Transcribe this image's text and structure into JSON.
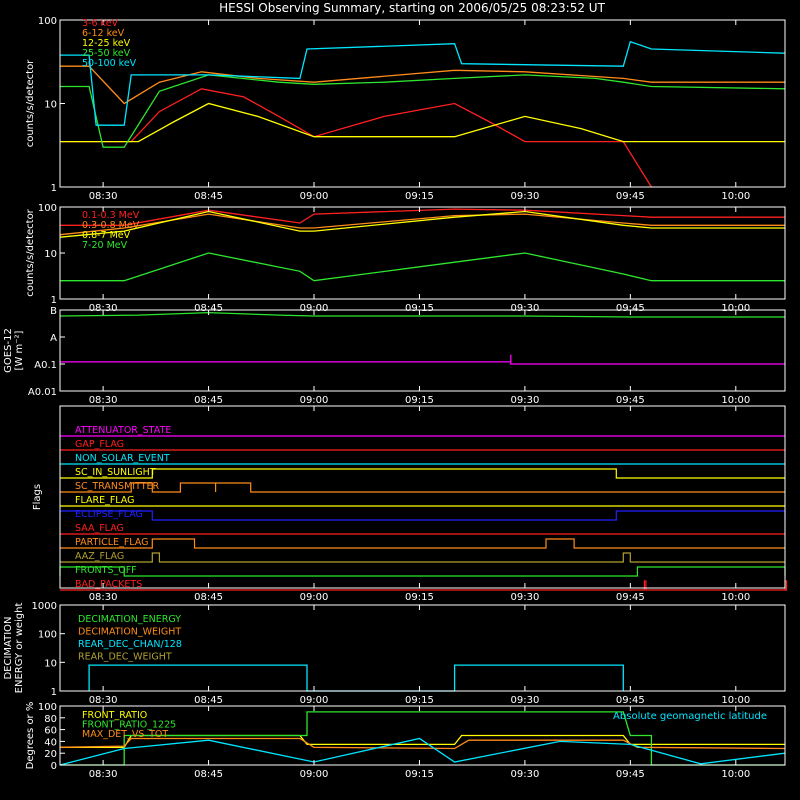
{
  "title": "HESSI Observing Summary, starting on 2006/05/25 08:23:52 UT",
  "x_ticks": [
    "08:30",
    "08:45",
    "09:00",
    "09:15",
    "09:30",
    "09:45",
    "10:00"
  ],
  "colors": {
    "red": "#ff2020",
    "orange": "#ff8c1a",
    "yellow": "#ffff00",
    "cyan": "#00e6ff",
    "green": "#2ee62e",
    "magenta": "#ff00ff",
    "blue": "#2020ff",
    "olive": "#b0a030",
    "white": "#ffffff"
  },
  "chart_data": [
    {
      "type": "line",
      "panel": "low_energy",
      "ylabel": "counts/s/detector",
      "y_scale": "log",
      "ylim": [
        1,
        100
      ],
      "y_ticks": [
        "1",
        "10",
        "100"
      ],
      "legend": "top-left",
      "series": [
        {
          "name": "3-6 keV",
          "color": "red",
          "x": [
            "08:23:52",
            "08:28",
            "08:30",
            "08:34",
            "08:38",
            "08:44",
            "08:50",
            "08:55",
            "09:00",
            "09:10",
            "09:20",
            "09:25",
            "09:30",
            "09:38",
            "09:44",
            "09:48"
          ],
          "values": [
            3.5,
            3.5,
            3.5,
            3.5,
            8,
            15,
            12,
            7,
            4,
            7,
            10,
            6,
            3.5,
            3.5,
            3.5,
            1
          ]
        },
        {
          "name": "6-12 keV",
          "color": "orange",
          "x": [
            "08:23:52",
            "08:28",
            "08:33",
            "08:38",
            "08:44",
            "08:52",
            "09:00",
            "09:20",
            "09:30",
            "09:44",
            "09:48",
            "10:07"
          ],
          "values": [
            28,
            28,
            10,
            18,
            24,
            20,
            18,
            25,
            24,
            20,
            18,
            18
          ]
        },
        {
          "name": "12-25 keV",
          "color": "yellow",
          "x": [
            "08:23:52",
            "08:28",
            "08:30",
            "08:35",
            "08:40",
            "08:45",
            "08:52",
            "09:00",
            "09:10",
            "09:20",
            "09:30",
            "09:38",
            "09:44",
            "09:48",
            "10:07"
          ],
          "values": [
            3.5,
            3.5,
            3.5,
            3.5,
            6,
            10,
            7,
            4,
            4,
            4,
            7,
            5,
            3.5,
            3.5,
            3.5
          ]
        },
        {
          "name": "25-50 keV",
          "color": "green",
          "x": [
            "08:23:52",
            "08:28",
            "08:30",
            "08:33",
            "08:38",
            "08:45",
            "08:55",
            "09:00",
            "09:10",
            "09:20",
            "09:30",
            "09:40",
            "09:44",
            "09:48",
            "10:07"
          ],
          "values": [
            16,
            16,
            3,
            3,
            14,
            22,
            18,
            17,
            18,
            20,
            22,
            20,
            18,
            16,
            15
          ]
        },
        {
          "name": "50-100 keV",
          "color": "cyan",
          "x": [
            "08:23:52",
            "08:28",
            "08:29",
            "08:33",
            "08:34",
            "08:45",
            "08:58",
            "08:59",
            "09:20",
            "09:21",
            "09:44",
            "09:45",
            "09:48",
            "10:07"
          ],
          "values": [
            38,
            38,
            5.5,
            5.5,
            22,
            22,
            20,
            45,
            52,
            30,
            28,
            55,
            45,
            40
          ]
        }
      ]
    },
    {
      "type": "line",
      "panel": "high_energy",
      "ylabel": "counts/s/detector",
      "y_scale": "log",
      "ylim": [
        1,
        100
      ],
      "y_ticks": [
        "1",
        "10",
        "100"
      ],
      "legend": "top-left",
      "series": [
        {
          "name": "0.1-0.3 MeV",
          "color": "red",
          "x": [
            "08:23:52",
            "08:33",
            "08:45",
            "08:58",
            "09:00",
            "09:20",
            "09:30",
            "09:44",
            "09:48",
            "10:07"
          ],
          "values": [
            40,
            40,
            85,
            45,
            70,
            90,
            85,
            65,
            60,
            60
          ]
        },
        {
          "name": "0.3-0.8 MeV",
          "color": "orange",
          "x": [
            "08:23:52",
            "08:33",
            "08:45",
            "08:58",
            "09:00",
            "09:20",
            "09:30",
            "09:44",
            "09:48",
            "10:07"
          ],
          "values": [
            25,
            35,
            70,
            35,
            35,
            65,
            70,
            45,
            40,
            40
          ]
        },
        {
          "name": "0.8-7 MeV",
          "color": "yellow",
          "x": [
            "08:23:52",
            "08:33",
            "08:45",
            "08:58",
            "09:00",
            "09:20",
            "09:30",
            "09:44",
            "09:48",
            "10:07"
          ],
          "values": [
            22,
            30,
            80,
            30,
            30,
            60,
            80,
            40,
            35,
            35
          ]
        },
        {
          "name": "7-20 MeV",
          "color": "green",
          "x": [
            "08:23:52",
            "08:33",
            "08:45",
            "08:58",
            "09:00",
            "09:15",
            "09:30",
            "09:44",
            "09:48",
            "10:07"
          ],
          "values": [
            2.5,
            2.5,
            10,
            4,
            2.5,
            5,
            10,
            3.5,
            2.5,
            2.5
          ]
        }
      ]
    },
    {
      "type": "line",
      "panel": "goes",
      "ylabel": "GOES-12",
      "ylabel2": "[W m⁻²]",
      "y_scale": "log",
      "ylim": [
        1e-09,
        1e-06
      ],
      "y_tick_labels": [
        "A0.01",
        "A0.1",
        "A",
        "B"
      ],
      "series": [
        {
          "color": "green",
          "x": [
            "08:23:52",
            "08:35",
            "08:45",
            "08:55",
            "09:00",
            "09:30",
            "09:45",
            "10:07"
          ],
          "values": [
            6e-07,
            6.5e-07,
            8e-07,
            6.5e-07,
            6e-07,
            6e-07,
            5.5e-07,
            5.5e-07
          ]
        },
        {
          "color": "magenta",
          "x": [
            "08:23:52",
            "08:45",
            "08:58",
            "09:28",
            "09:28",
            "09:28",
            "10:07"
          ],
          "values": [
            1.2e-08,
            1.2e-08,
            1.2e-08,
            1.2e-08,
            2.2e-08,
            1e-08,
            1e-08
          ]
        }
      ]
    },
    {
      "type": "line",
      "panel": "flags",
      "ylabel": "Flags",
      "flags": [
        {
          "name": "ATTENUATOR_STATE",
          "color": "magenta",
          "segments": []
        },
        {
          "name": "GAP_FLAG",
          "color": "red",
          "segments": []
        },
        {
          "name": "NON_SOLAR_EVENT",
          "color": "cyan",
          "segments": []
        },
        {
          "name": "SC_IN_SUNLIGHT",
          "color": "yellow",
          "segments": [
            [
              "08:37",
              "09:43"
            ]
          ]
        },
        {
          "name": "SC_TRANSMITTER",
          "color": "orange",
          "segments": [
            [
              "08:34",
              "08:37"
            ],
            [
              "08:41",
              "08:46"
            ],
            [
              "08:46",
              "08:51"
            ]
          ]
        },
        {
          "name": "FLARE_FLAG",
          "color": "yellow",
          "segments": []
        },
        {
          "name": "ECLIPSE_FLAG",
          "color": "blue",
          "segments": [
            [
              "08:23:52",
              "08:37"
            ],
            [
              "09:43",
              "10:07"
            ]
          ]
        },
        {
          "name": "SAA_FLAG",
          "color": "red",
          "segments": []
        },
        {
          "name": "PARTICLE_FLAG",
          "color": "orange",
          "segments": [
            [
              "08:37",
              "08:43"
            ],
            [
              "09:33",
              "09:37"
            ]
          ]
        },
        {
          "name": "AAZ_FLAG",
          "color": "olive",
          "segments": [
            [
              "08:37",
              "08:38"
            ],
            [
              "09:44",
              "09:45"
            ]
          ]
        },
        {
          "name": "FRONTS_OFF",
          "color": "green",
          "segments": [
            [
              "08:23:52",
              "08:33"
            ],
            [
              "09:46",
              "10:07"
            ]
          ]
        },
        {
          "name": "BAD_PACKETS",
          "color": "red",
          "segments": [
            [
              "09:47",
              "09:47"
            ],
            [
              "10:07",
              "10:07"
            ]
          ]
        }
      ]
    },
    {
      "type": "line",
      "panel": "decimation",
      "ylabel": "DECIMATION",
      "ylabel2": "ENERGY or weight",
      "y_scale": "log",
      "ylim": [
        1,
        1000
      ],
      "y_ticks": [
        "1",
        "10",
        "100",
        "1000"
      ],
      "legend": "top-left",
      "series": [
        {
          "name": "DECIMATION_ENERGY",
          "color": "green",
          "x": [],
          "values": []
        },
        {
          "name": "DECIMATION_WEIGHT",
          "color": "orange",
          "x": [],
          "values": []
        },
        {
          "name": "REAR_DEC_CHAN/128",
          "color": "cyan",
          "x": [
            "08:28",
            "08:28",
            "08:59",
            "08:59",
            "09:20",
            "09:20",
            "09:44",
            "09:44"
          ],
          "values": [
            1,
            8,
            8,
            1,
            1,
            8,
            8,
            1
          ]
        },
        {
          "name": "REAR_DEC_WEIGHT",
          "color": "olive",
          "x": [],
          "values": []
        }
      ]
    },
    {
      "type": "line",
      "panel": "ratios",
      "ylabel": "Degrees or %",
      "ylim": [
        0,
        100
      ],
      "y_ticks": [
        "0",
        "20",
        "40",
        "60",
        "80",
        "100"
      ],
      "legend": "top-left",
      "annotation": "Absolute geomagnetic latitude",
      "series": [
        {
          "name": "FRONT_RATIO",
          "color": "yellow",
          "x": [
            "08:23:52",
            "08:33",
            "08:34",
            "08:58",
            "08:59",
            "09:20",
            "09:21",
            "09:44",
            "09:45",
            "10:07"
          ],
          "values": [
            30,
            30,
            50,
            50,
            35,
            35,
            50,
            50,
            35,
            35
          ]
        },
        {
          "name": "FRONT_RATIO_1225",
          "color": "green",
          "x": [
            "08:23:52",
            "08:33",
            "08:33",
            "08:59",
            "08:59",
            "09:44",
            "09:45",
            "09:48",
            "09:48",
            "10:07"
          ],
          "values": [
            0,
            0,
            50,
            50,
            90,
            90,
            50,
            50,
            0,
            0
          ]
        },
        {
          "name": "MAX_DET_VS_TOT",
          "color": "orange",
          "x": [
            "08:23:52",
            "08:33",
            "08:34",
            "08:58",
            "09:00",
            "09:20",
            "09:22",
            "09:44",
            "09:46",
            "10:07"
          ],
          "values": [
            30,
            32,
            45,
            45,
            30,
            28,
            42,
            42,
            30,
            28
          ]
        },
        {
          "name": "Absolute geomagnetic latitude",
          "color": "cyan",
          "x": [
            "08:23:52",
            "08:33",
            "08:45",
            "09:00",
            "09:15",
            "09:20",
            "09:35",
            "09:45",
            "09:55",
            "10:07"
          ],
          "values": [
            0,
            28,
            42,
            5,
            45,
            5,
            40,
            35,
            2,
            20
          ]
        }
      ]
    }
  ]
}
